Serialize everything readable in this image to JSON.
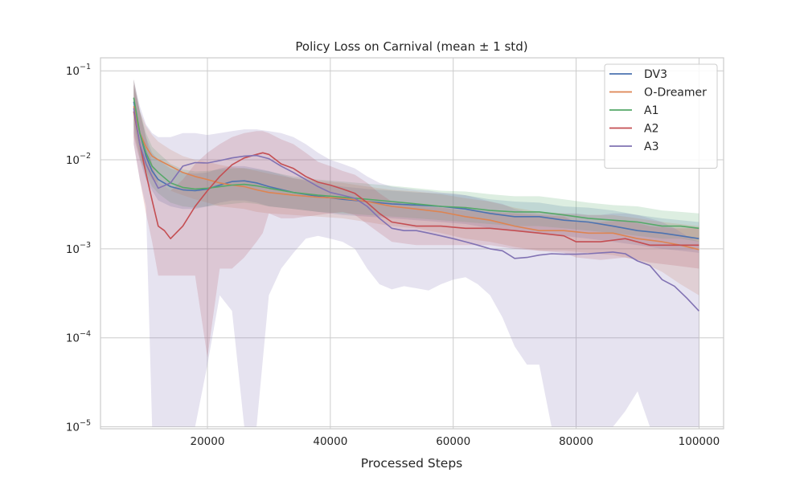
{
  "chart_data": {
    "type": "line",
    "title": "Policy Loss on Carnival (mean ± 1 std)",
    "xlabel": "Processed Steps",
    "ylabel": "",
    "xlim": [
      2600,
      104000
    ],
    "ylim": [
      9.5e-06,
      0.14
    ],
    "yscale": "log",
    "grid": true,
    "legend_position": "top-right",
    "xticks": [
      20000,
      40000,
      60000,
      80000,
      100000
    ],
    "xtick_labels": [
      "20000",
      "40000",
      "60000",
      "80000",
      "100000"
    ],
    "yticks": [
      1e-05,
      0.0001,
      0.001,
      0.01,
      0.1
    ],
    "ytick_labels": [
      {
        "base": "10",
        "exp": "−5"
      },
      {
        "base": "10",
        "exp": "−4"
      },
      {
        "base": "10",
        "exp": "−3"
      },
      {
        "base": "10",
        "exp": "−2"
      },
      {
        "base": "10",
        "exp": "−1"
      }
    ],
    "series": [
      {
        "name": "DV3",
        "color": "#4c72b0",
        "x": [
          8000,
          9000,
          10000,
          11000,
          12000,
          14000,
          16000,
          18000,
          20000,
          22000,
          24000,
          26000,
          28000,
          30000,
          34000,
          38000,
          42000,
          46000,
          50000,
          54000,
          58000,
          62000,
          66000,
          70000,
          74000,
          78000,
          82000,
          86000,
          90000,
          94000,
          97000,
          100000
        ],
        "y": [
          0.045,
          0.02,
          0.011,
          0.0075,
          0.006,
          0.005,
          0.0046,
          0.0045,
          0.0047,
          0.0052,
          0.0057,
          0.0058,
          0.0055,
          0.005,
          0.0043,
          0.0039,
          0.0036,
          0.0034,
          0.0032,
          0.0031,
          0.003,
          0.0028,
          0.0025,
          0.0023,
          0.0023,
          0.0021,
          0.002,
          0.0018,
          0.0016,
          0.0015,
          0.0014,
          0.0013
        ],
        "lower": [
          0.02,
          0.01,
          0.006,
          0.0045,
          0.0035,
          0.003,
          0.0028,
          0.0028,
          0.003,
          0.0033,
          0.0035,
          0.0035,
          0.0033,
          0.003,
          0.0028,
          0.0026,
          0.0024,
          0.0023,
          0.0022,
          0.0021,
          0.002,
          0.0019,
          0.0017,
          0.0016,
          0.0015,
          0.0014,
          0.0013,
          0.0012,
          0.0011,
          0.001,
          0.00095,
          0.0009
        ],
        "upper": [
          0.07,
          0.035,
          0.018,
          0.012,
          0.01,
          0.008,
          0.0072,
          0.007,
          0.0072,
          0.008,
          0.0085,
          0.0085,
          0.008,
          0.0075,
          0.0062,
          0.0055,
          0.005,
          0.0047,
          0.0045,
          0.0043,
          0.0042,
          0.004,
          0.0036,
          0.0034,
          0.0033,
          0.003,
          0.0029,
          0.0027,
          0.0024,
          0.0022,
          0.0021,
          0.002
        ]
      },
      {
        "name": "O-Dreamer",
        "color": "#dd8452",
        "x": [
          8000,
          9000,
          10000,
          11000,
          12000,
          14000,
          16000,
          18000,
          20000,
          22000,
          24000,
          26000,
          28000,
          30000,
          34000,
          38000,
          42000,
          46000,
          50000,
          54000,
          58000,
          62000,
          66000,
          70000,
          74000,
          78000,
          82000,
          86000,
          90000,
          94000,
          97000,
          100000
        ],
        "y": [
          0.04,
          0.02,
          0.014,
          0.011,
          0.01,
          0.0085,
          0.0072,
          0.0065,
          0.006,
          0.0055,
          0.0052,
          0.005,
          0.0046,
          0.0043,
          0.004,
          0.0038,
          0.0037,
          0.0034,
          0.003,
          0.0028,
          0.0026,
          0.0023,
          0.0021,
          0.0018,
          0.0016,
          0.0016,
          0.0015,
          0.0015,
          0.0013,
          0.0012,
          0.0011,
          0.00098
        ],
        "lower": [
          0.018,
          0.01,
          0.0075,
          0.006,
          0.0055,
          0.0045,
          0.004,
          0.0036,
          0.0033,
          0.003,
          0.0029,
          0.0028,
          0.0026,
          0.0025,
          0.0024,
          0.0023,
          0.0022,
          0.002,
          0.0018,
          0.0017,
          0.0015,
          0.0013,
          0.0012,
          0.00105,
          0.00095,
          0.00095,
          0.0009,
          0.00085,
          0.00075,
          0.00055,
          0.0004,
          0.0003
        ],
        "upper": [
          0.07,
          0.035,
          0.024,
          0.019,
          0.016,
          0.013,
          0.011,
          0.01,
          0.0095,
          0.0088,
          0.0083,
          0.008,
          0.0075,
          0.007,
          0.0062,
          0.0058,
          0.0055,
          0.005,
          0.0046,
          0.0044,
          0.0041,
          0.0037,
          0.0034,
          0.0029,
          0.0026,
          0.0025,
          0.0024,
          0.0024,
          0.0022,
          0.002,
          0.0019,
          0.0018
        ]
      },
      {
        "name": "A1",
        "color": "#55a868",
        "x": [
          8000,
          9000,
          10000,
          11000,
          12000,
          14000,
          16000,
          18000,
          20000,
          22000,
          24000,
          26000,
          28000,
          30000,
          34000,
          38000,
          42000,
          46000,
          50000,
          54000,
          58000,
          62000,
          66000,
          70000,
          74000,
          78000,
          82000,
          86000,
          90000,
          94000,
          97000,
          100000
        ],
        "y": [
          0.05,
          0.02,
          0.012,
          0.0085,
          0.0072,
          0.0055,
          0.0049,
          0.0047,
          0.0048,
          0.005,
          0.0052,
          0.0053,
          0.0051,
          0.0048,
          0.0043,
          0.004,
          0.0038,
          0.0036,
          0.0034,
          0.0032,
          0.003,
          0.0029,
          0.0027,
          0.0026,
          0.0026,
          0.0024,
          0.0022,
          0.0021,
          0.002,
          0.0018,
          0.0018,
          0.0017
        ],
        "lower": [
          0.025,
          0.011,
          0.0068,
          0.005,
          0.0042,
          0.0033,
          0.003,
          0.0029,
          0.003,
          0.0031,
          0.0032,
          0.0033,
          0.0032,
          0.003,
          0.0028,
          0.0026,
          0.0025,
          0.0024,
          0.0023,
          0.0022,
          0.0021,
          0.002,
          0.0019,
          0.0018,
          0.0018,
          0.0017,
          0.0016,
          0.0015,
          0.0014,
          0.0013,
          0.0013,
          0.0012
        ],
        "upper": [
          0.08,
          0.036,
          0.02,
          0.014,
          0.012,
          0.009,
          0.0078,
          0.0074,
          0.0075,
          0.0078,
          0.008,
          0.0081,
          0.0078,
          0.0074,
          0.0065,
          0.006,
          0.0057,
          0.0054,
          0.0051,
          0.0048,
          0.0045,
          0.0044,
          0.0041,
          0.0039,
          0.0039,
          0.0036,
          0.0033,
          0.0031,
          0.003,
          0.0027,
          0.0026,
          0.0025
        ]
      },
      {
        "name": "A2",
        "color": "#c44e52",
        "x": [
          8000,
          9000,
          10000,
          11000,
          12000,
          13000,
          14000,
          16000,
          18000,
          20000,
          22000,
          24000,
          26000,
          28000,
          29000,
          30000,
          32000,
          34000,
          36000,
          38000,
          40000,
          42000,
          44000,
          46000,
          48000,
          50000,
          54000,
          58000,
          62000,
          66000,
          70000,
          74000,
          78000,
          80000,
          84000,
          88000,
          92000,
          96000,
          100000
        ],
        "y": [
          0.035,
          0.015,
          0.007,
          0.0035,
          0.0018,
          0.0016,
          0.0013,
          0.0018,
          0.003,
          0.0045,
          0.0065,
          0.0088,
          0.0105,
          0.0115,
          0.012,
          0.0115,
          0.009,
          0.008,
          0.0065,
          0.0056,
          0.0052,
          0.0047,
          0.0042,
          0.0033,
          0.0025,
          0.002,
          0.0018,
          0.0018,
          0.0017,
          0.0017,
          0.0016,
          0.0015,
          0.0014,
          0.0012,
          0.0012,
          0.0013,
          0.0011,
          0.0011,
          0.0011
        ],
        "lower": [
          0.015,
          0.006,
          0.0025,
          0.0012,
          0.0005,
          0.0005,
          0.0005,
          0.0005,
          0.0005,
          6e-05,
          0.0006,
          0.0006,
          0.0008,
          0.0012,
          0.0015,
          0.0025,
          0.0022,
          0.0022,
          0.0023,
          0.0024,
          0.0025,
          0.0026,
          0.0024,
          0.0019,
          0.0015,
          0.0012,
          0.0011,
          0.0011,
          0.0011,
          0.0011,
          0.001,
          0.00095,
          0.0009,
          0.0008,
          0.00075,
          0.0008,
          0.0007,
          0.00065,
          0.0006
        ],
        "upper": [
          0.08,
          0.035,
          0.018,
          0.009,
          0.0055,
          0.005,
          0.0045,
          0.006,
          0.009,
          0.012,
          0.015,
          0.018,
          0.02,
          0.021,
          0.021,
          0.02,
          0.017,
          0.015,
          0.012,
          0.0095,
          0.0085,
          0.0075,
          0.0068,
          0.0055,
          0.0042,
          0.0034,
          0.003,
          0.0029,
          0.0027,
          0.0026,
          0.0025,
          0.0024,
          0.0023,
          0.002,
          0.002,
          0.0021,
          0.0018,
          0.0017,
          0.0017
        ]
      },
      {
        "name": "A3",
        "color": "#8172b3",
        "x": [
          8000,
          9000,
          10000,
          11000,
          12000,
          14000,
          16000,
          18000,
          20000,
          22000,
          24000,
          26000,
          28000,
          30000,
          32000,
          34000,
          36000,
          38000,
          40000,
          42000,
          44000,
          46000,
          48000,
          50000,
          52000,
          54000,
          56000,
          58000,
          60000,
          62000,
          64000,
          66000,
          68000,
          70000,
          72000,
          74000,
          76000,
          78000,
          80000,
          82000,
          84000,
          86000,
          88000,
          90000,
          92000,
          94000,
          96000,
          98000,
          100000
        ],
        "y": [
          0.038,
          0.015,
          0.009,
          0.0065,
          0.0048,
          0.0055,
          0.0085,
          0.0093,
          0.0092,
          0.0098,
          0.0105,
          0.011,
          0.0112,
          0.0103,
          0.0085,
          0.0072,
          0.006,
          0.005,
          0.0043,
          0.004,
          0.0037,
          0.003,
          0.0022,
          0.0017,
          0.0016,
          0.0016,
          0.0015,
          0.0014,
          0.0013,
          0.0012,
          0.0011,
          0.001,
          0.00095,
          0.00078,
          0.0008,
          0.00085,
          0.00088,
          0.00087,
          0.00087,
          0.00088,
          0.0009,
          0.00092,
          0.00088,
          0.00073,
          0.00065,
          0.00045,
          0.00038,
          0.00028,
          0.0002
        ],
        "lower": [
          0.015,
          0.006,
          0.003,
          1e-05,
          1e-05,
          1e-05,
          1e-05,
          1e-05,
          5e-05,
          0.0003,
          0.0002,
          1e-05,
          1e-05,
          0.0003,
          0.0006,
          0.0009,
          0.0013,
          0.0014,
          0.0013,
          0.0012,
          0.001,
          0.0006,
          0.0004,
          0.00035,
          0.00038,
          0.00036,
          0.00034,
          0.0004,
          0.00045,
          0.00048,
          0.0004,
          0.0003,
          0.00017,
          8e-05,
          5e-05,
          5e-05,
          1e-05,
          1e-05,
          1e-05,
          1e-05,
          1e-05,
          1e-05,
          1.5e-05,
          2.5e-05,
          1e-05,
          1e-05,
          1e-05,
          1e-05,
          1e-05
        ],
        "upper": [
          0.08,
          0.04,
          0.025,
          0.02,
          0.018,
          0.018,
          0.02,
          0.02,
          0.019,
          0.02,
          0.021,
          0.022,
          0.022,
          0.021,
          0.02,
          0.018,
          0.015,
          0.012,
          0.01,
          0.009,
          0.008,
          0.0065,
          0.0055,
          0.005,
          0.0048,
          0.0046,
          0.0045,
          0.0043,
          0.0042,
          0.004,
          0.0037,
          0.0034,
          0.0032,
          0.0028,
          0.0026,
          0.0025,
          0.0025,
          0.0025,
          0.0025,
          0.0024,
          0.0024,
          0.0025,
          0.0025,
          0.0024,
          0.0022,
          0.002,
          0.0017,
          0.0014,
          0.0012
        ]
      }
    ]
  }
}
